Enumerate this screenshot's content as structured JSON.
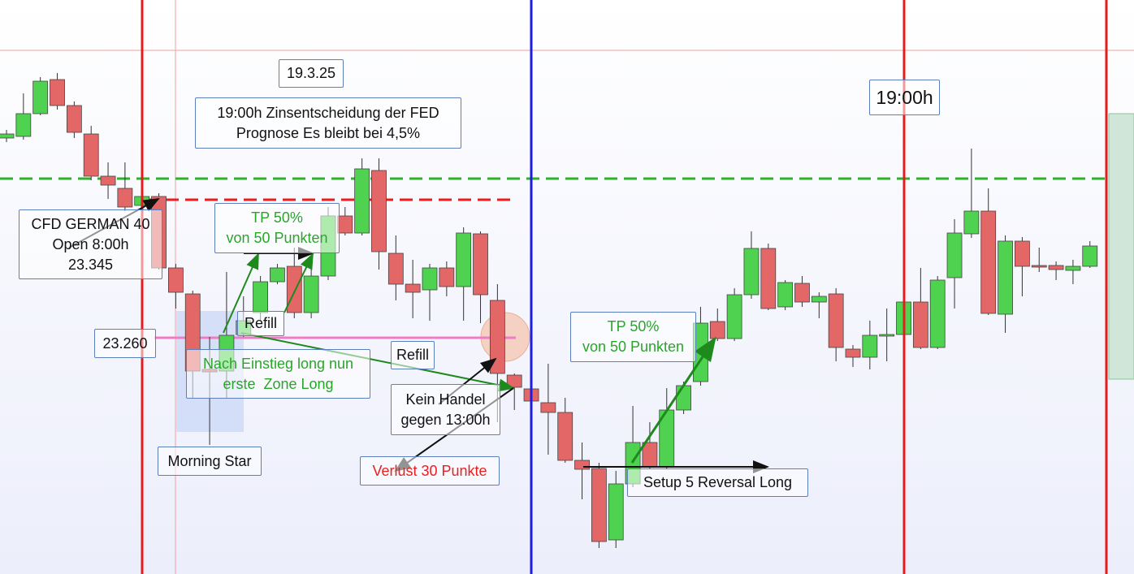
{
  "chart_data": {
    "type": "candlestick",
    "ylim": [
      23114.5,
      23468
    ],
    "up_color": "#4fd24f",
    "down_color": "#e46767",
    "series": {
      "open": [
        23383,
        23384,
        23398,
        23419,
        23403,
        23385.5,
        23359.5,
        23352,
        23341.5,
        23347,
        23303,
        23287,
        23240.5,
        23239.5,
        23262,
        23275.5,
        23294.5,
        23304,
        23275.5,
        23298,
        23335,
        23324.5,
        23363,
        23312,
        23293,
        23289.5,
        23303,
        23291.5,
        23324,
        23283,
        23237,
        23228.5,
        23220,
        23214,
        23184.5,
        23179.5,
        23135.5,
        23170,
        23195.5,
        23180.5,
        23215.5,
        23233,
        23270,
        23259.5,
        23286.5,
        23315,
        23279,
        23293.5,
        23282,
        23287,
        23253,
        23248,
        23261,
        23262,
        23282,
        23254,
        23297,
        23324,
        23338,
        23274.5,
        23319.5,
        23304.5,
        23304.5,
        23301.5,
        23304
      ],
      "high": [
        23388,
        23410.5,
        23420.5,
        23423,
        23405.5,
        23390.5,
        23368,
        23368,
        23348,
        23349,
        23305.5,
        23289,
        23260.5,
        23300.5,
        23285.5,
        23298,
        23305.5,
        23315.5,
        23305.5,
        23340.5,
        23340.5,
        23370.5,
        23370.5,
        23323,
        23308,
        23305.5,
        23307,
        23328,
        23325.5,
        23293,
        23238,
        23233,
        23244,
        23223,
        23195.5,
        23183,
        23178,
        23218,
        23208,
        23229,
        23233,
        23279,
        23278,
        23290.5,
        23325.5,
        23318,
        23295.5,
        23298,
        23288,
        23290.5,
        23255.5,
        23270.5,
        23278,
        23283,
        23303,
        23298,
        23333,
        23376.5,
        23352,
        23323,
        23322,
        23315.5,
        23307,
        23308,
        23319.5
      ],
      "low": [
        23380.5,
        23382,
        23397,
        23400.5,
        23383,
        23357,
        23345.5,
        23338,
        23339,
        23302,
        23278,
        23223,
        23194,
        23223,
        23260.5,
        23270.5,
        23293,
        23272,
        23272,
        23295.5,
        23323,
        23323,
        23302,
        23283,
        23272,
        23270.5,
        23285.5,
        23270.5,
        23269,
        23208,
        23215.5,
        23213,
        23188,
        23183,
        23160.5,
        23130.5,
        23130.5,
        23168,
        23179,
        23179,
        23213,
        23230.5,
        23258,
        23258,
        23284,
        23277,
        23277,
        23279,
        23272,
        23245.5,
        23242,
        23240.5,
        23245.5,
        23258,
        23253,
        23253,
        23278,
        23321.5,
        23274,
        23263,
        23285.5,
        23300.5,
        23295.5,
        23293,
        23303
      ],
      "close": [
        23385.5,
        23398,
        23418,
        23403,
        23386.5,
        23359.5,
        23354,
        23340.5,
        23347,
        23303,
        23288,
        23239.5,
        23239,
        23261.5,
        23270.5,
        23294.5,
        23303,
        23275.5,
        23298,
        23335,
        23324.5,
        23364,
        23313,
        23293,
        23288,
        23303,
        23291.5,
        23324.5,
        23286.5,
        23238,
        23229.5,
        23221,
        23214,
        23184.5,
        23179,
        23134.5,
        23170,
        23195.5,
        23180.5,
        23215.5,
        23230.5,
        23269,
        23259.5,
        23286.5,
        23315,
        23278,
        23294,
        23282,
        23285.5,
        23254,
        23248,
        23261.5,
        23262,
        23282,
        23254,
        23295.5,
        23324.5,
        23338,
        23275,
        23319.5,
        23304,
        23303.5,
        23302,
        23304,
        23316.5
      ]
    },
    "levels": [
      {
        "value": 23358,
        "color": "#2fb02f",
        "style": "dashed"
      },
      {
        "value": 23345,
        "color": "#ee1c1c",
        "style": "dashed"
      },
      {
        "value": 23260,
        "color": "#f07cc8",
        "style": "solid"
      }
    ]
  },
  "annotations": [
    {
      "lines": [
        "19.3.25"
      ]
    },
    {
      "lines": [
        "19:00h Zinsentscheidung der FED",
        "Prognose Es bleibt bei 4,5%"
      ]
    },
    {
      "lines": [
        "19:00h"
      ]
    },
    {
      "lines": [
        "CFD GERMAN 40",
        "Open 8:00h",
        "23.345"
      ]
    },
    {
      "lines": [
        "TP 50%",
        "von 50 Punkten"
      ]
    },
    {
      "lines": [
        "23.260"
      ]
    },
    {
      "lines": [
        "Refill"
      ]
    },
    {
      "lines": [
        "Nach Einstieg long nun",
        "erste  Zone Long"
      ]
    },
    {
      "lines": [
        "Refill"
      ]
    },
    {
      "lines": [
        "Kein Handel",
        "gegen 13:00h"
      ]
    },
    {
      "lines": [
        "Morning Star"
      ]
    },
    {
      "lines": [
        "Verlust 30 Punkte"
      ]
    },
    {
      "lines": [
        "TP 50%",
        "von 50 Punkten"
      ]
    },
    {
      "lines": [
        "Setup 5 Reversal Long"
      ]
    }
  ]
}
